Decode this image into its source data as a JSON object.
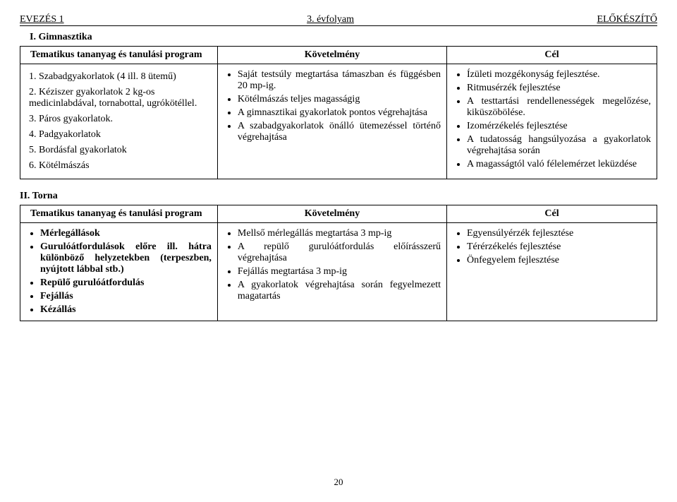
{
  "header": {
    "left": "EVEZÉS 1",
    "center": "3. évfolyam",
    "right": "ELŐKÉSZÍTŐ"
  },
  "s1": {
    "title": "I. Gimnasztika",
    "th1": "Tematikus tananyag és tanulási program",
    "th2": "Követelmény",
    "th3": "Cél",
    "c1": {
      "i1": "1. Szabadgyakorlatok (4 ill. 8 ütemű)",
      "i2": "2. Kéziszer gyakorlatok 2 kg-os medicinlabdával, tornabottal, ugrókötéllel.",
      "i3": "3. Páros gyakorlatok.",
      "i4": "4. Padgyakorlatok",
      "i5": "5. Bordásfal gyakorlatok",
      "i6": "6. Kötélmászás"
    },
    "c2": {
      "i1": "Saját testsúly megtartása támaszban és függésben 20 mp-ig.",
      "i2": "Kötélmászás teljes magasságig",
      "i3": "A gimnasztikai gyakorlatok pontos végrehajtása",
      "i4": "A szabadgyakorlatok önálló ütemezéssel történő végrehajtása"
    },
    "c3": {
      "i1": "Ízületi mozgékonyság fejlesztése.",
      "i2": "Ritmusérzék fejlesztése",
      "i3": "A testtartási rendellenességek megelőzése, kiküszöbölése.",
      "i4": "Izomérzékelés fejlesztése",
      "i5": "A tudatosság hangsúlyozása a gyakorlatok végrehajtása során",
      "i6": "A magasságtól való félelemérzet leküzdése"
    }
  },
  "s2": {
    "title": "II. Torna",
    "th1": "Tematikus tananyag és tanulási program",
    "th2": "Követelmény",
    "th3": "Cél",
    "c1": {
      "i1": "Mérlegállások",
      "i2": "Gurulóátfordulások előre ill. hátra különböző helyzetekben (terpeszben, nyújtott lábbal stb.)",
      "i3": "Repülő gurulóátfordulás",
      "i4": "Fejállás",
      "i5": "Kézállás"
    },
    "c2": {
      "i1": "Mellső mérlegállás megtartása 3 mp-ig",
      "i2": "A repülő gurulóátfordulás előírásszerű végrehajtása",
      "i3": "Fejállás megtartása 3 mp-ig",
      "i4": "A gyakorlatok végrehajtása során fegyelmezett magatartás"
    },
    "c3": {
      "i1": "Egyensúlyérzék fejlesztése",
      "i2": "Térérzékelés fejlesztése",
      "i3": "Önfegyelem fejlesztése"
    }
  },
  "page": "20"
}
